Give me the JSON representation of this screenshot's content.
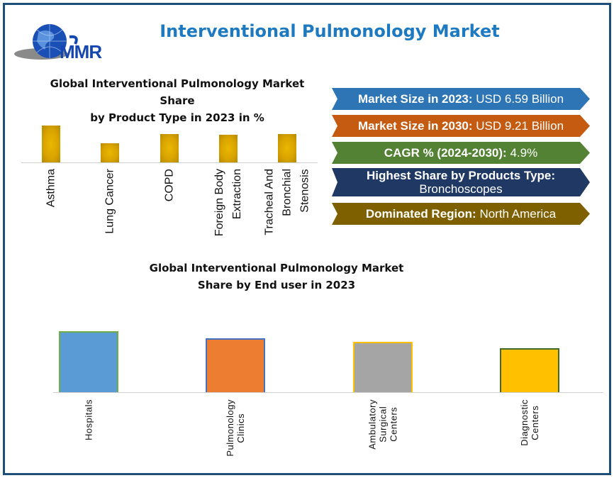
{
  "header": {
    "title": "Interventional Pulmonology Market",
    "logo_text": "MMR"
  },
  "banners": [
    {
      "label": "Market Size in 2023:",
      "value": "USD 6.59 Billion",
      "color": "#2e75b6"
    },
    {
      "label": "Market Size in 2030:",
      "value": "USD 9.21 Billion",
      "color": "#c55a11"
    },
    {
      "label": "CAGR % (2024-2030):",
      "value": "4.9%",
      "color": "#548235"
    },
    {
      "label": "Highest Share by Products Type:",
      "value": "Bronchoscopes",
      "color": "#1f3864"
    },
    {
      "label": "Dominated Region:",
      "value": "North America",
      "color": "#7f6000"
    }
  ],
  "chart_data": [
    {
      "type": "bar",
      "title": "Global Interventional Pulmonology Market Share\nby Product Type in 2023 in %",
      "categories": [
        "Asthma",
        "Lung Cancer",
        "COPD",
        "Foreign Body\nExtraction",
        "Tracheal And\nBronchial\nStenosis"
      ],
      "values": [
        26,
        13.5,
        20,
        19.5,
        20
      ],
      "color": "#d9a400",
      "grid": false,
      "legend": "none"
    },
    {
      "type": "bar",
      "title": "Global Interventional Pulmonology Market\nShare by End user in 2023",
      "categories": [
        "Hospitals",
        "Pulmonology\nClinics",
        "Ambulatory\nSurgical\nCenters",
        "Diagnostic\nCenters"
      ],
      "values": [
        43,
        38,
        35.5,
        31
      ],
      "colors": [
        "#5b9bd5",
        "#ed7d31",
        "#a5a5a5",
        "#ffc000"
      ],
      "borders": [
        "#70ad47",
        "#4472c4",
        "#ffc000",
        "#43682b"
      ],
      "grid": false,
      "legend": "none"
    }
  ]
}
